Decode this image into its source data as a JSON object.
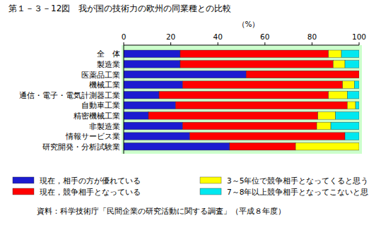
{
  "chart_data": {
    "type": "bar",
    "title": "第１－３－12図　我が国の技術力の欧州の同業種との比較",
    "x_label": "（%）",
    "annotations": [
      "資料：科学技術庁「民間企業の研究活動に関する調査」（平成８年度）"
    ],
    "orientation": "horizontal",
    "stacked": true,
    "grid": false,
    "legend": "bottom",
    "xlim": [
      0,
      100
    ],
    "xticks": [
      0,
      20,
      40,
      60,
      80,
      100
    ],
    "categories": [
      "全　体",
      "製造業",
      "医薬品工業",
      "機械工業",
      "通信・電子・電気計測器工業",
      "自動車工業",
      "精密機械工業",
      "非製造業",
      "情報サービス業",
      "研究開発・分析試験業"
    ],
    "series": [
      {
        "name": "現在，相手の方が優れている",
        "color": "#1c1cd0",
        "values": [
          24,
          24,
          52,
          25,
          15,
          22,
          10.5,
          25,
          28,
          45
        ]
      },
      {
        "name": "現在，競争相手となっている",
        "color": "#ff0000",
        "values": [
          63,
          65,
          48,
          68,
          72,
          73,
          72,
          57,
          66,
          28
        ]
      },
      {
        "name": "3～5年位で競争相手となってくると思う",
        "color": "#ffff00",
        "values": [
          5.5,
          5,
          0,
          5,
          8,
          3.5,
          7.5,
          6,
          0,
          27
        ]
      },
      {
        "name": "7～8年以上競争相手となってこないと思",
        "color": "#00e8f0",
        "values": [
          7.5,
          6,
          0,
          2,
          5,
          1.5,
          10,
          12,
          6,
          0
        ]
      }
    ]
  }
}
